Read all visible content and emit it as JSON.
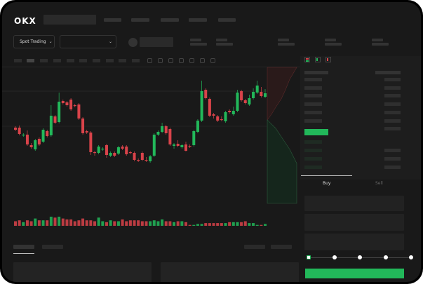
{
  "header": {
    "logo": "OKX",
    "nav_count": 5
  },
  "controls": {
    "market_select": "Spot Trading",
    "market_chevron": "⌄",
    "pair_chevron": "⌄"
  },
  "toolbar": {
    "icons": [
      "indicators-icon",
      "drawing-icon",
      "line-icon",
      "ruler-icon",
      "camera-icon",
      "settings-icon",
      "fullscreen-icon"
    ]
  },
  "orderbook": {
    "view_icons": [
      "both-sides-icon",
      "bids-only-icon",
      "asks-only-icon"
    ]
  },
  "trade": {
    "tabs": [
      {
        "label": "Buy",
        "active": true
      },
      {
        "label": "Sell",
        "active": false
      }
    ],
    "leverage_steps": 5,
    "selected_step": 0
  },
  "colors": {
    "up": "#22b85a",
    "down": "#d9434a",
    "bg": "#191919",
    "panel": "#222222"
  },
  "chart": {
    "type": "candlestick",
    "candles": [
      [
        118,
        120,
        113,
        115
      ],
      [
        118,
        121,
        107,
        109
      ],
      [
        107,
        110,
        105,
        108
      ],
      [
        108,
        114,
        92,
        94
      ],
      [
        93,
        96,
        88,
        90
      ],
      [
        87,
        102,
        85,
        100
      ],
      [
        102,
        104,
        92,
        94
      ],
      [
        98,
        117,
        96,
        115
      ],
      [
        113,
        115,
        104,
        106
      ],
      [
        107,
        150,
        105,
        135
      ],
      [
        134,
        136,
        123,
        125
      ],
      [
        126,
        168,
        124,
        155
      ],
      [
        156,
        158,
        151,
        153
      ],
      [
        154,
        156,
        148,
        150
      ],
      [
        158,
        160,
        142,
        144
      ],
      [
        150,
        152,
        147,
        149
      ],
      [
        151,
        153,
        129,
        131
      ],
      [
        131,
        133,
        108,
        110
      ],
      [
        113,
        115,
        109,
        111
      ],
      [
        111,
        113,
        79,
        83
      ],
      [
        83,
        85,
        78,
        82
      ],
      [
        82,
        93,
        80,
        91
      ],
      [
        87,
        90,
        85,
        88
      ],
      [
        93,
        95,
        75,
        79
      ],
      [
        78,
        84,
        76,
        82
      ],
      [
        82,
        84,
        76,
        78
      ],
      [
        81,
        92,
        79,
        90
      ],
      [
        91,
        93,
        86,
        88
      ],
      [
        91,
        93,
        78,
        80
      ],
      [
        83,
        85,
        80,
        82
      ],
      [
        82,
        84,
        70,
        72
      ],
      [
        72,
        74,
        69,
        71
      ],
      [
        82,
        84,
        70,
        72
      ],
      [
        72,
        76,
        69,
        71
      ],
      [
        70,
        79,
        68,
        77
      ],
      [
        78,
        110,
        76,
        108
      ],
      [
        108,
        114,
        106,
        112
      ],
      [
        112,
        125,
        110,
        120
      ],
      [
        120,
        122,
        108,
        110
      ],
      [
        116,
        118,
        92,
        94
      ],
      [
        92,
        96,
        88,
        94
      ],
      [
        95,
        100,
        90,
        92
      ],
      [
        90,
        95,
        88,
        93
      ],
      [
        94,
        98,
        84,
        85
      ],
      [
        92,
        94,
        89,
        91
      ],
      [
        93,
        115,
        91,
        113
      ],
      [
        112,
        130,
        110,
        128
      ],
      [
        128,
        185,
        126,
        170
      ],
      [
        172,
        174,
        158,
        160
      ],
      [
        159,
        161,
        133,
        135
      ],
      [
        137,
        139,
        131,
        135
      ],
      [
        134,
        136,
        126,
        128
      ],
      [
        130,
        134,
        127,
        129
      ],
      [
        127,
        142,
        125,
        140
      ],
      [
        142,
        144,
        138,
        140
      ],
      [
        137,
        148,
        135,
        142
      ],
      [
        142,
        172,
        140,
        168
      ],
      [
        170,
        172,
        155,
        157
      ],
      [
        157,
        159,
        151,
        153
      ],
      [
        151,
        165,
        149,
        160
      ],
      [
        160,
        174,
        158,
        169
      ],
      [
        168,
        185,
        166,
        178
      ],
      [
        169,
        176,
        161,
        163
      ],
      [
        162,
        173,
        160,
        167
      ]
    ],
    "volumes": [
      5,
      6,
      4,
      6,
      5,
      8,
      6,
      6,
      6,
      10,
      9,
      10,
      8,
      7,
      7,
      5,
      6,
      8,
      6,
      6,
      5,
      9,
      5,
      4,
      6,
      5,
      5,
      7,
      5,
      6,
      6,
      6,
      5,
      5,
      5,
      6,
      5,
      7,
      5,
      5,
      4,
      5,
      5,
      4,
      1,
      1,
      2,
      2,
      3,
      3,
      3,
      3,
      3,
      3,
      4,
      4,
      4,
      4,
      5,
      3,
      3,
      1,
      1,
      2
    ]
  }
}
